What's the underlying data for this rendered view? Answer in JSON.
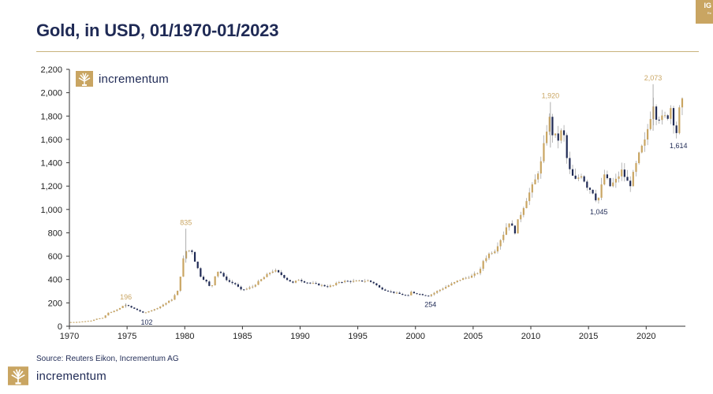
{
  "header": {
    "title": "Gold, in USD, 01/1970-01/2023",
    "corner_tag": "IG",
    "corner_sub": "Re"
  },
  "logo": {
    "text": "incrementum",
    "icon": "tree-logo-icon"
  },
  "footer": {
    "source": "Source: Reuters Eikon, Incrementum AG",
    "logo_text": "incrementum"
  },
  "colors": {
    "up": "#c9a562",
    "down": "#1f2a55",
    "axis": "#333333",
    "title": "#1f2a55",
    "label_gold": "#c9a562",
    "label_navy": "#1f2a55"
  },
  "chart_data": {
    "type": "candlestick",
    "title": "Gold, in USD, 01/1970-01/2023",
    "xlabel": "",
    "ylabel": "",
    "xlim": [
      1970,
      2023.4
    ],
    "ylim": [
      0,
      2200
    ],
    "x_ticks": [
      "1970",
      "1975",
      "1980",
      "1985",
      "1990",
      "1995",
      "2000",
      "2005",
      "2010",
      "2015",
      "2020"
    ],
    "y_ticks": [
      "0",
      "200",
      "400",
      "600",
      "800",
      "1,000",
      "1,200",
      "1,400",
      "1,600",
      "1,800",
      "2,000",
      "2,200"
    ],
    "grid": false,
    "close_path": [
      [
        1970.0,
        35
      ],
      [
        1971.0,
        38
      ],
      [
        1972.0,
        48
      ],
      [
        1972.5,
        65
      ],
      [
        1973.0,
        70
      ],
      [
        1973.5,
        115
      ],
      [
        1974.0,
        130
      ],
      [
        1974.5,
        155
      ],
      [
        1974.9,
        186
      ],
      [
        1975.5,
        160
      ],
      [
        1976.0,
        140
      ],
      [
        1976.6,
        110
      ],
      [
        1977.0,
        130
      ],
      [
        1977.5,
        145
      ],
      [
        1978.0,
        170
      ],
      [
        1978.5,
        200
      ],
      [
        1979.0,
        230
      ],
      [
        1979.5,
        300
      ],
      [
        1979.9,
        510
      ],
      [
        1980.1,
        640
      ],
      [
        1980.5,
        650
      ],
      [
        1980.8,
        640
      ],
      [
        1981.0,
        560
      ],
      [
        1981.5,
        430
      ],
      [
        1982.0,
        380
      ],
      [
        1982.4,
        320
      ],
      [
        1982.8,
        450
      ],
      [
        1983.1,
        480
      ],
      [
        1983.5,
        420
      ],
      [
        1984.0,
        380
      ],
      [
        1984.5,
        360
      ],
      [
        1985.0,
        310
      ],
      [
        1985.5,
        320
      ],
      [
        1986.0,
        340
      ],
      [
        1986.5,
        380
      ],
      [
        1987.0,
        420
      ],
      [
        1987.5,
        460
      ],
      [
        1987.9,
        480
      ],
      [
        1988.5,
        440
      ],
      [
        1989.0,
        400
      ],
      [
        1989.5,
        370
      ],
      [
        1990.0,
        400
      ],
      [
        1990.5,
        380
      ],
      [
        1991.0,
        370
      ],
      [
        1991.5,
        360
      ],
      [
        1992.0,
        350
      ],
      [
        1992.5,
        340
      ],
      [
        1993.0,
        350
      ],
      [
        1993.5,
        380
      ],
      [
        1994.0,
        385
      ],
      [
        1995.0,
        385
      ],
      [
        1996.0,
        390
      ],
      [
        1996.5,
        370
      ],
      [
        1997.0,
        330
      ],
      [
        1997.5,
        310
      ],
      [
        1998.0,
        295
      ],
      [
        1999.0,
        270
      ],
      [
        1999.5,
        260
      ],
      [
        1999.8,
        300
      ],
      [
        2000.0,
        285
      ],
      [
        2001.0,
        265
      ],
      [
        2001.3,
        262
      ],
      [
        2002.0,
        300
      ],
      [
        2003.0,
        350
      ],
      [
        2004.0,
        400
      ],
      [
        2005.0,
        430
      ],
      [
        2005.7,
        470
      ],
      [
        2006.0,
        560
      ],
      [
        2006.5,
        620
      ],
      [
        2007.0,
        650
      ],
      [
        2007.8,
        800
      ],
      [
        2008.2,
        900
      ],
      [
        2008.8,
        800
      ],
      [
        2009.0,
        900
      ],
      [
        2009.8,
        1100
      ],
      [
        2010.5,
        1250
      ],
      [
        2011.0,
        1400
      ],
      [
        2011.7,
        1800
      ],
      [
        2012.0,
        1650
      ],
      [
        2012.5,
        1600
      ],
      [
        2012.9,
        1700
      ],
      [
        2013.3,
        1400
      ],
      [
        2013.6,
        1300
      ],
      [
        2014.0,
        1250
      ],
      [
        2014.5,
        1300
      ],
      [
        2015.0,
        1200
      ],
      [
        2015.5,
        1150
      ],
      [
        2015.9,
        1060
      ],
      [
        2016.5,
        1300
      ],
      [
        2017.0,
        1200
      ],
      [
        2017.5,
        1250
      ],
      [
        2018.0,
        1330
      ],
      [
        2018.7,
        1200
      ],
      [
        2019.0,
        1300
      ],
      [
        2019.6,
        1500
      ],
      [
        2020.0,
        1580
      ],
      [
        2020.5,
        1800
      ],
      [
        2020.6,
        1970
      ],
      [
        2021.0,
        1800
      ],
      [
        2021.5,
        1780
      ],
      [
        2022.0,
        1800
      ],
      [
        2022.2,
        1900
      ],
      [
        2022.6,
        1700
      ],
      [
        2022.8,
        1650
      ],
      [
        2023.0,
        1850
      ],
      [
        2023.1,
        1920
      ]
    ],
    "annotations": [
      {
        "label": "196",
        "x": 1974.9,
        "y": 196,
        "color": "gold",
        "position": "above"
      },
      {
        "label": "102",
        "x": 1976.7,
        "y": 102,
        "color": "navy",
        "position": "below"
      },
      {
        "label": "835",
        "x": 1980.1,
        "y": 835,
        "color": "gold",
        "position": "above"
      },
      {
        "label": "254",
        "x": 2001.3,
        "y": 254,
        "color": "navy",
        "position": "below"
      },
      {
        "label": "1,920",
        "x": 2011.7,
        "y": 1920,
        "color": "gold",
        "position": "above"
      },
      {
        "label": "1,045",
        "x": 2015.9,
        "y": 1045,
        "color": "navy",
        "position": "below"
      },
      {
        "label": "2,073",
        "x": 2020.6,
        "y": 2073,
        "color": "gold",
        "position": "above"
      },
      {
        "label": "1,614",
        "x": 2022.8,
        "y": 1614,
        "color": "navy",
        "position": "below"
      }
    ]
  }
}
